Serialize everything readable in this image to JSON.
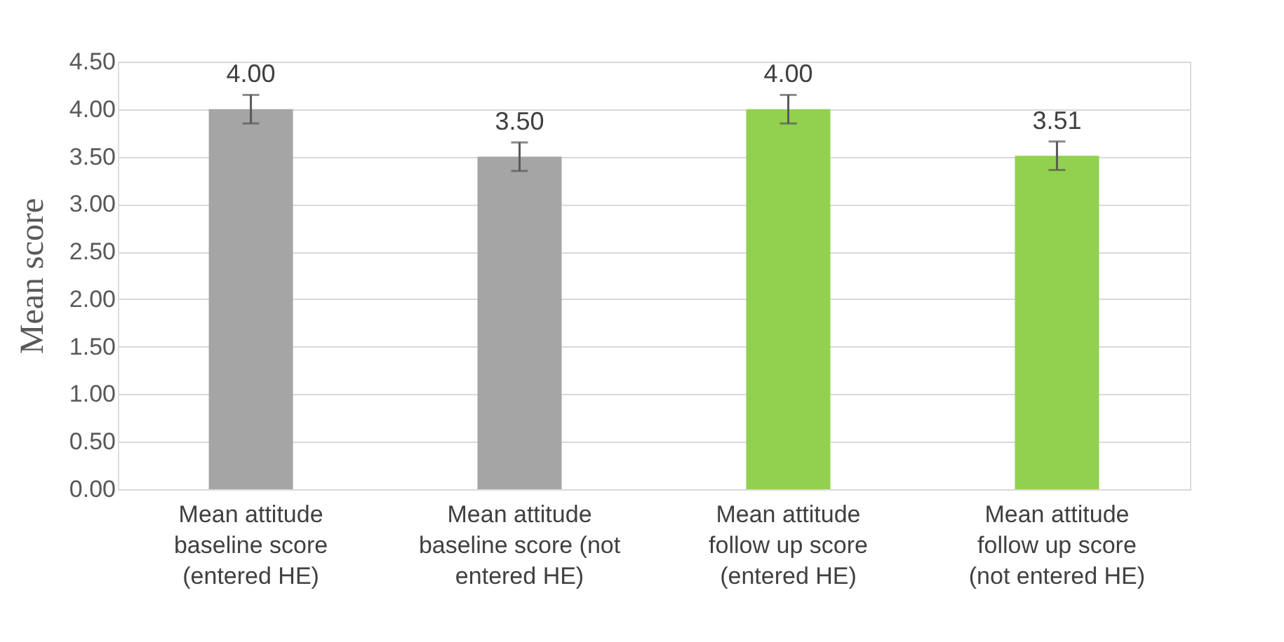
{
  "chart_data": {
    "type": "bar",
    "ylabel": "Mean score",
    "categories": [
      "Mean attitude baseline score (entered HE)",
      "Mean attitude baseline score (not entered HE)",
      "Mean attitude follow up score (entered HE)",
      "Mean attitude follow up score (not entered HE)"
    ],
    "values": [
      4.0,
      3.5,
      4.0,
      3.51
    ],
    "colors": [
      "#a5a5a5",
      "#a5a5a5",
      "#92d050",
      "#92d050"
    ],
    "errors": [
      0.15,
      0.15,
      0.15,
      0.15
    ],
    "ylim": [
      0,
      4.5
    ],
    "yticks": [
      {
        "value": 0,
        "label": "0.00"
      },
      {
        "value": 0.5,
        "label": "0.50"
      },
      {
        "value": 1,
        "label": "1.00"
      },
      {
        "value": 1.5,
        "label": "1.50"
      },
      {
        "value": 2,
        "label": "2.00"
      },
      {
        "value": 2.5,
        "label": "2.50"
      },
      {
        "value": 3,
        "label": "3.00"
      },
      {
        "value": 3.5,
        "label": "3.50"
      },
      {
        "value": 4,
        "label": "4.00"
      },
      {
        "value": 4.5,
        "label": "4.50"
      }
    ],
    "value_labels": [
      "4.00",
      "3.50",
      "4.00",
      "3.51"
    ],
    "grid": "y"
  }
}
